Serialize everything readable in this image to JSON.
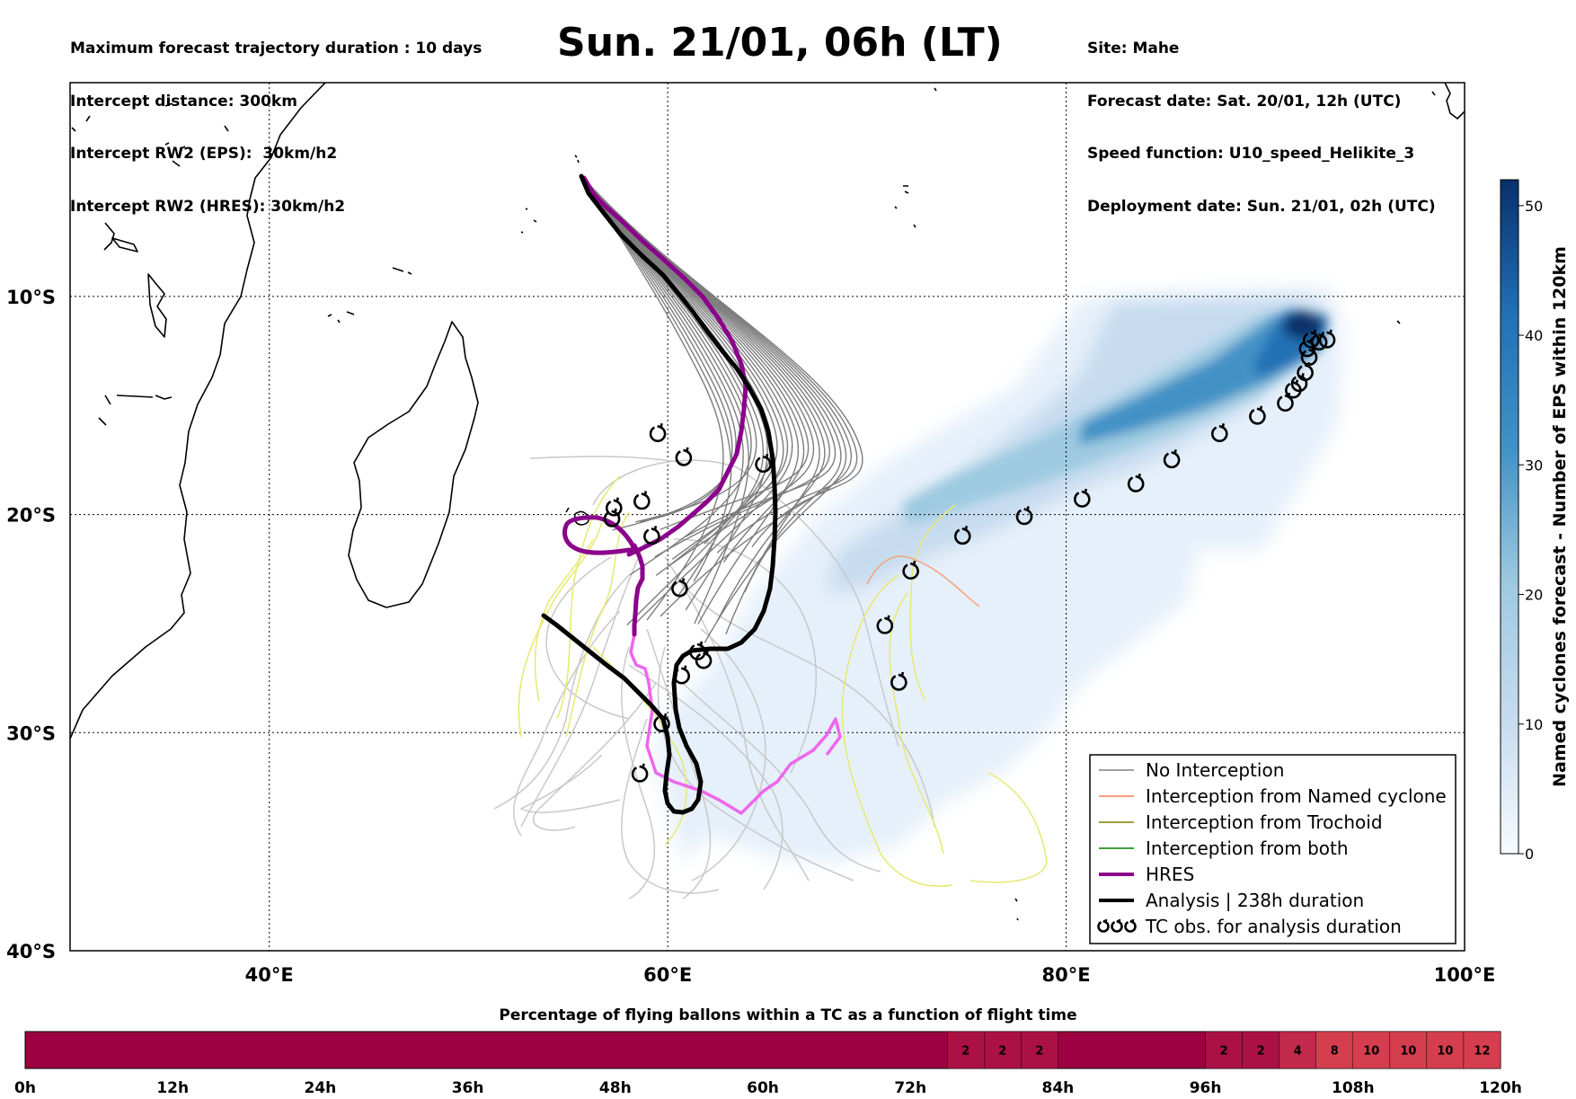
{
  "header_left": [
    "Maximum forecast trajectory duration : 10 days",
    "Intercept distance: 300km",
    "Intercept RW2 (EPS):  30km/h2",
    "Intercept RW2 (HRES): 30km/h2"
  ],
  "header_right": [
    "Site: Mahe",
    "Forecast date: Sat. 20/01, 12h (UTC)",
    "Speed function: U10_speed_Helikite_3",
    "Deployment date: Sun. 21/01, 02h (UTC)"
  ],
  "title": "Sun. 21/01, 06h (LT)",
  "map": {
    "lon_range": [
      30,
      100
    ],
    "lat_range": [
      -40,
      -0.2
    ],
    "lat_grid": [
      -10,
      -20,
      -30
    ],
    "lon_grid": [
      40,
      60,
      80
    ],
    "lat_labels": [
      {
        "value": -10,
        "text": "10°S"
      },
      {
        "value": -20,
        "text": "20°S"
      },
      {
        "value": -30,
        "text": "30°S"
      },
      {
        "value": -40,
        "text": "40°S"
      }
    ],
    "lon_labels": [
      {
        "value": 40,
        "text": "40°E"
      },
      {
        "value": 60,
        "text": "60°E"
      },
      {
        "value": 80,
        "text": "80°E"
      },
      {
        "value": 100,
        "text": "100°E"
      }
    ],
    "colors": {
      "no_interception": "#808080",
      "named_cyclone": "#ff7f50",
      "trochoid": "#808000",
      "both": "#008000",
      "hres": "#8b008b",
      "analysis": "#000000",
      "density_dark": "#08306b"
    }
  },
  "tc_obs": [
    [
      92.3,
      -12.0
    ],
    [
      92.7,
      -12.1
    ],
    [
      93.1,
      -12.0
    ],
    [
      92.1,
      -12.4
    ],
    [
      92.2,
      -12.8
    ],
    [
      92.0,
      -13.5
    ],
    [
      91.7,
      -14.0
    ],
    [
      91.4,
      -14.3
    ],
    [
      91.0,
      -14.9
    ],
    [
      89.6,
      -15.5
    ],
    [
      87.7,
      -16.3
    ],
    [
      85.3,
      -17.5
    ],
    [
      83.5,
      -18.6
    ],
    [
      80.8,
      -19.3
    ],
    [
      77.9,
      -20.1
    ],
    [
      74.8,
      -21.0
    ],
    [
      72.2,
      -22.6
    ],
    [
      70.9,
      -25.1
    ],
    [
      71.6,
      -27.7
    ],
    [
      59.5,
      -16.3
    ],
    [
      60.8,
      -17.4
    ],
    [
      64.8,
      -17.7
    ],
    [
      57.3,
      -19.7
    ],
    [
      58.7,
      -19.4
    ],
    [
      57.2,
      -20.2
    ],
    [
      59.2,
      -21.0
    ],
    [
      60.6,
      -23.4
    ],
    [
      61.5,
      -26.3
    ],
    [
      61.8,
      -26.7
    ],
    [
      60.7,
      -27.4
    ],
    [
      59.7,
      -29.6
    ],
    [
      58.6,
      -31.9
    ]
  ],
  "colorbar": {
    "title": "Named cyclones forecast - Number of EPS within 120km",
    "ticks": [
      0,
      10,
      20,
      30,
      40,
      50
    ],
    "max": 52
  },
  "legend": {
    "items": [
      {
        "label": "No Interception",
        "color": "#808080",
        "kind": "thin"
      },
      {
        "label": "Interception from Named cyclone",
        "color": "#ff7f50",
        "kind": "thin"
      },
      {
        "label": "Interception from Trochoid",
        "color": "#808000",
        "kind": "thin"
      },
      {
        "label": "Interception from both",
        "color": "#008000",
        "kind": "thin"
      },
      {
        "label": "HRES",
        "color": "#8b008b",
        "kind": "thick"
      },
      {
        "label": "Analysis | 238h duration",
        "color": "#000000",
        "kind": "thick"
      },
      {
        "label": "TC obs. for analysis duration",
        "color": "#000000",
        "kind": "tc"
      }
    ]
  },
  "percentage_bar": {
    "title": "Percentage of flying ballons within a TC as a function of flight time",
    "tick_labels": [
      "0h",
      "12h",
      "24h",
      "36h",
      "48h",
      "60h",
      "72h",
      "84h",
      "96h",
      "108h",
      "120h"
    ],
    "max_hours": 120,
    "cells": [
      {
        "start": 75,
        "end": 78,
        "value": "2"
      },
      {
        "start": 78,
        "end": 81,
        "value": "2"
      },
      {
        "start": 81,
        "end": 84,
        "value": "2"
      },
      {
        "start": 96,
        "end": 99,
        "value": "2"
      },
      {
        "start": 99,
        "end": 102,
        "value": "2"
      },
      {
        "start": 102,
        "end": 105,
        "value": "4"
      },
      {
        "start": 105,
        "end": 108,
        "value": "8"
      },
      {
        "start": 108,
        "end": 111,
        "value": "10"
      },
      {
        "start": 111,
        "end": 114,
        "value": "10"
      },
      {
        "start": 114,
        "end": 117,
        "value": "10"
      },
      {
        "start": 117,
        "end": 120,
        "value": "12"
      }
    ],
    "colors": {
      "base": "#9e0142",
      "low": "#ab1145",
      "mid": "#c2294a",
      "high": "#d53e4f"
    }
  }
}
